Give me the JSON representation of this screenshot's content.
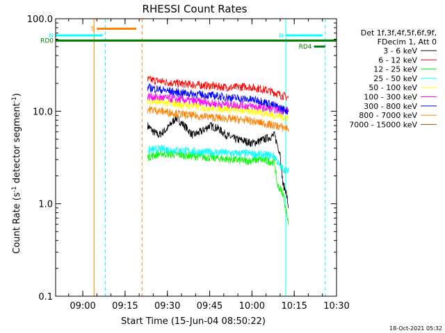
{
  "chart_data": {
    "type": "line",
    "title": "RHESSI Count Rates",
    "xlabel": "Start Time (15-Jun-04 08:50:22)",
    "ylabel_parts": [
      "Count Rate (s",
      "-1",
      " detector segment",
      "-1",
      ")"
    ],
    "yscale": "log",
    "ylim": [
      0.1,
      100.0
    ],
    "xlim": [
      "08:50:22",
      "10:30:00"
    ],
    "x_ticks": [
      "09:00",
      "09:15",
      "09:30",
      "09:45",
      "10:00",
      "10:15",
      "10:30"
    ],
    "y_ticks": [
      "0.1",
      "1.0",
      "10.0",
      "100.0"
    ],
    "footer_timestamp": "18-Oct-2021 05:32",
    "legend_header": [
      "Det 1f,3f,4f,5f,6f,9f,",
      "FDecim 1, Att 0"
    ],
    "series": [
      {
        "name": "3 - 6 keV",
        "color": "#000000",
        "points": [
          [
            "09:23",
            7.0
          ],
          [
            "09:25",
            6.0
          ],
          [
            "09:27",
            5.5
          ],
          [
            "09:30",
            6.5
          ],
          [
            "09:33",
            8.5
          ],
          [
            "09:36",
            7.0
          ],
          [
            "09:39",
            5.5
          ],
          [
            "09:42",
            6.0
          ],
          [
            "09:45",
            7.0
          ],
          [
            "09:48",
            6.5
          ],
          [
            "09:51",
            5.5
          ],
          [
            "09:54",
            5.0
          ],
          [
            "09:57",
            4.8
          ],
          [
            "10:00",
            4.5
          ],
          [
            "10:03",
            4.8
          ],
          [
            "10:06",
            5.2
          ],
          [
            "10:08",
            5.5
          ],
          [
            "10:10",
            3.5
          ],
          [
            "10:11",
            1.6
          ],
          [
            "10:12",
            1.4
          ],
          [
            "10:13",
            0.9
          ]
        ]
      },
      {
        "name": "6 - 12 keV",
        "color": "#ff0000",
        "points": [
          [
            "09:23",
            22.0
          ],
          [
            "09:28",
            21.0
          ],
          [
            "09:33",
            20.0
          ],
          [
            "09:38",
            19.5
          ],
          [
            "09:43",
            19.0
          ],
          [
            "09:48",
            18.5
          ],
          [
            "09:53",
            18.0
          ],
          [
            "09:58",
            18.5
          ],
          [
            "10:03",
            17.5
          ],
          [
            "10:08",
            16.0
          ],
          [
            "10:10",
            15.0
          ],
          [
            "10:13",
            14.0
          ]
        ]
      },
      {
        "name": "12 - 25 keV",
        "color": "#00ff00",
        "points": [
          [
            "09:23",
            3.2
          ],
          [
            "09:28",
            3.5
          ],
          [
            "09:33",
            3.4
          ],
          [
            "09:38",
            3.3
          ],
          [
            "09:43",
            3.2
          ],
          [
            "09:48",
            3.1
          ],
          [
            "09:53",
            3.0
          ],
          [
            "09:58",
            2.9
          ],
          [
            "10:03",
            3.0
          ],
          [
            "10:08",
            2.8
          ],
          [
            "10:09",
            1.6
          ],
          [
            "10:11",
            1.3
          ],
          [
            "10:13",
            0.6
          ]
        ]
      },
      {
        "name": "25 - 50 keV",
        "color": "#00ffff",
        "points": [
          [
            "09:23",
            3.8
          ],
          [
            "09:28",
            3.9
          ],
          [
            "09:33",
            3.8
          ],
          [
            "09:38",
            3.7
          ],
          [
            "09:43",
            3.6
          ],
          [
            "09:48",
            3.6
          ],
          [
            "09:53",
            3.5
          ],
          [
            "09:58",
            3.5
          ],
          [
            "10:03",
            3.4
          ],
          [
            "10:08",
            3.3
          ],
          [
            "10:10",
            2.5
          ],
          [
            "10:13",
            2.2
          ]
        ]
      },
      {
        "name": "50 - 100 keV",
        "color": "#ffff00",
        "points": [
          [
            "09:23",
            13.0
          ],
          [
            "09:28",
            12.5
          ],
          [
            "09:33",
            12.0
          ],
          [
            "09:38",
            11.5
          ],
          [
            "09:43",
            11.0
          ],
          [
            "09:48",
            10.8
          ],
          [
            "09:53",
            10.5
          ],
          [
            "09:58",
            10.2
          ],
          [
            "10:03",
            9.8
          ],
          [
            "10:08",
            9.0
          ],
          [
            "10:13",
            8.5
          ]
        ]
      },
      {
        "name": "100 - 300 keV",
        "color": "#ff00ff",
        "points": [
          [
            "09:23",
            14.5
          ],
          [
            "09:28",
            14.0
          ],
          [
            "09:33",
            13.5
          ],
          [
            "09:38",
            13.0
          ],
          [
            "09:43",
            12.5
          ],
          [
            "09:48",
            12.0
          ],
          [
            "09:53",
            11.8
          ],
          [
            "09:58",
            11.5
          ],
          [
            "10:03",
            11.0
          ],
          [
            "10:08",
            10.5
          ],
          [
            "10:13",
            10.0
          ]
        ]
      },
      {
        "name": "300 - 800 keV",
        "color": "#0000ff",
        "points": [
          [
            "09:23",
            18.0
          ],
          [
            "09:28",
            17.0
          ],
          [
            "09:33",
            16.0
          ],
          [
            "09:38",
            15.5
          ],
          [
            "09:43",
            15.0
          ],
          [
            "09:48",
            14.5
          ],
          [
            "09:53",
            14.0
          ],
          [
            "09:58",
            13.5
          ],
          [
            "10:03",
            13.0
          ],
          [
            "10:08",
            11.5
          ],
          [
            "10:13",
            10.0
          ]
        ]
      },
      {
        "name": "800 - 7000 keV",
        "color": "#ff8000",
        "points": [
          [
            "09:23",
            10.5
          ],
          [
            "09:28",
            10.0
          ],
          [
            "09:33",
            9.5
          ],
          [
            "09:38",
            9.0
          ],
          [
            "09:43",
            8.8
          ],
          [
            "09:48",
            8.5
          ],
          [
            "09:53",
            8.2
          ],
          [
            "09:58",
            8.0
          ],
          [
            "10:03",
            7.5
          ],
          [
            "10:08",
            7.0
          ],
          [
            "10:13",
            6.5
          ]
        ]
      },
      {
        "name": "7000 - 15000 keV",
        "color": "#a05000",
        "points": []
      }
    ],
    "top_bars": [
      {
        "label": "S",
        "color": "#ff8000",
        "start": "09:05",
        "end": "09:19",
        "level": 78
      },
      {
        "label": "N",
        "color": "#00ffff",
        "start": "08:50:22",
        "end": "09:07",
        "level": 66
      },
      {
        "label": "N",
        "color": "#00ffff",
        "start": "10:12",
        "end": "10:25",
        "level": 66
      },
      {
        "label": "RD0",
        "color": "#008000",
        "start": "08:50:22",
        "end": "10:30:00",
        "level": 58
      },
      {
        "label": "RD4",
        "color": "#008000",
        "start": "10:22",
        "end": "10:26",
        "level": 50
      }
    ],
    "vertical_lines": [
      {
        "time": "08:50:22",
        "color": "#00ffff",
        "style": "solid"
      },
      {
        "time": "09:04",
        "color": "#ff8000",
        "style": "solid"
      },
      {
        "time": "09:08",
        "color": "#00ffff",
        "style": "dashed"
      },
      {
        "time": "09:21",
        "color": "#ff8000",
        "style": "dashed"
      },
      {
        "time": "10:12",
        "color": "#00ffff",
        "style": "solid"
      },
      {
        "time": "10:26",
        "color": "#00ffff",
        "style": "dashed"
      }
    ]
  }
}
